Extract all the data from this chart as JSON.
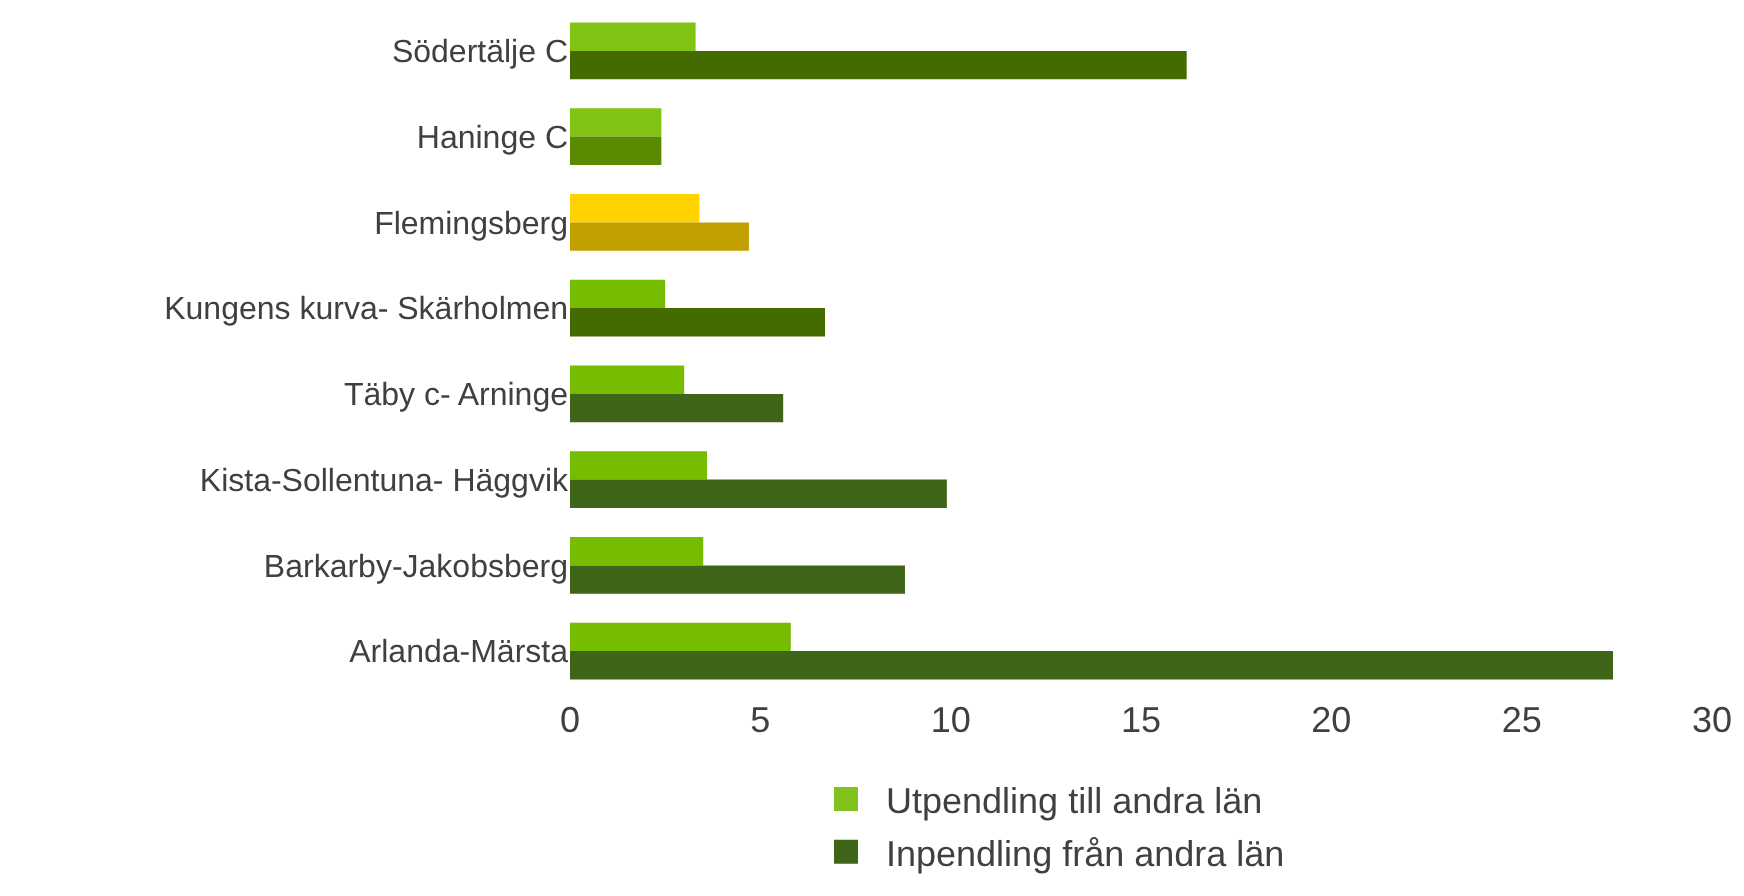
{
  "chart_data": {
    "type": "bar",
    "orientation": "horizontal",
    "categories": [
      "Södertälje C",
      "Haninge C",
      "Flemingsberg",
      "Kungens kurva- Skärholmen",
      "Täby c- Arninge",
      "Kista-Sollentuna- Häggvik",
      "Barkarby-Jakobsberg",
      "Arlanda-Märsta"
    ],
    "series": [
      {
        "name": "Utpendling till andra län",
        "color": "#7fc31c",
        "colors": [
          "#82c414",
          "#82c414",
          "#ffd200",
          "#76bc00",
          "#76bc00",
          "#76bc00",
          "#76bc00",
          "#76bc00"
        ],
        "values": [
          3.3,
          2.4,
          3.4,
          2.5,
          3.0,
          3.6,
          3.5,
          5.8
        ]
      },
      {
        "name": "Inpendling från andra län",
        "color": "#3f6618",
        "colors": [
          "#446b00",
          "#5a8a00",
          "#c0a000",
          "#446b00",
          "#3f6618",
          "#3f6618",
          "#3f6618",
          "#3f6618"
        ],
        "values": [
          16.2,
          2.4,
          4.7,
          6.7,
          5.6,
          9.9,
          8.8,
          27.4
        ]
      }
    ],
    "xlim": [
      0,
      30
    ],
    "xticks": [
      0,
      5,
      10,
      15,
      20,
      25,
      30
    ],
    "grid": false,
    "legend": "bottom"
  }
}
